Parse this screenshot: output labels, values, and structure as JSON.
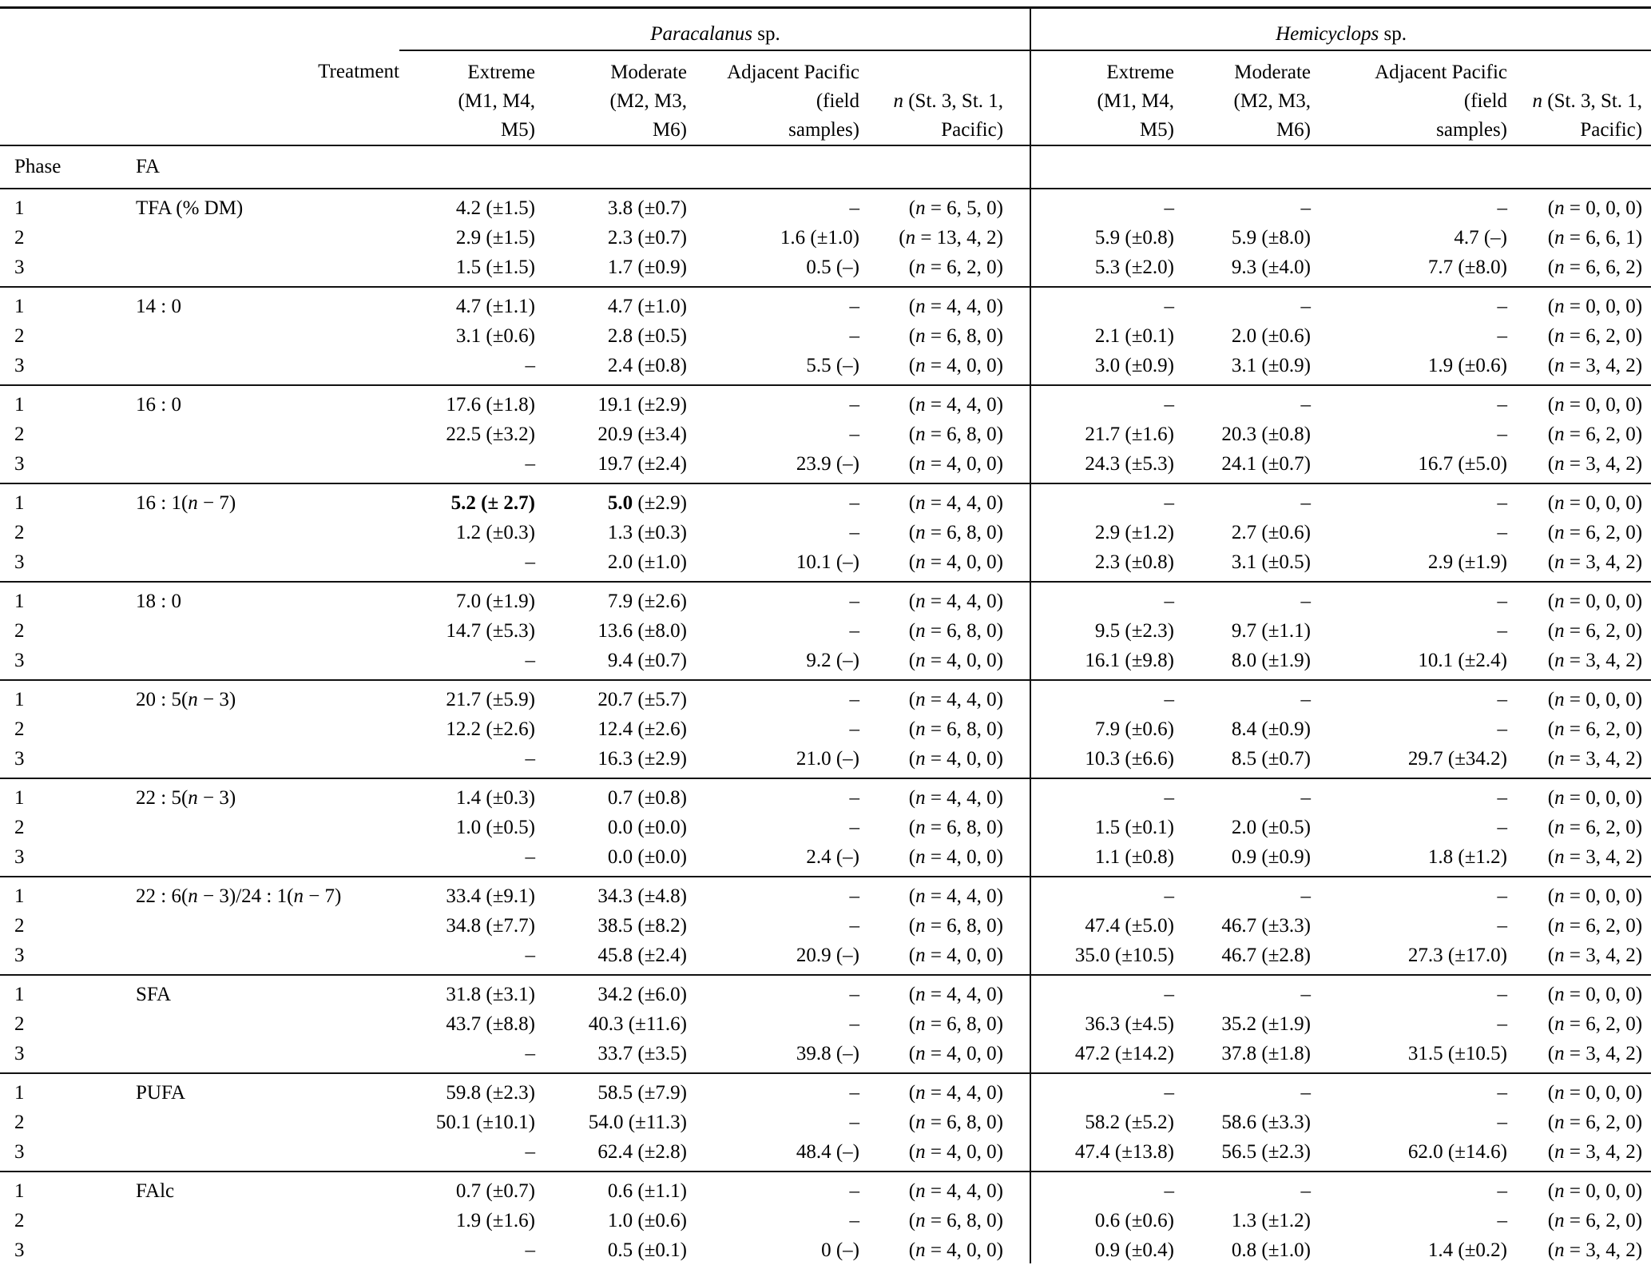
{
  "table": {
    "treatment_label": "Treatment",
    "phase_label": "Phase",
    "fa_label": "FA",
    "species": [
      {
        "name": "Paracalanus",
        "suffix": " sp."
      },
      {
        "name": "Hemicyclops",
        "suffix": " sp."
      }
    ],
    "columns": {
      "extreme": [
        "Extreme",
        "(M1, M4,",
        "M5)"
      ],
      "moderate": [
        "Moderate",
        "(M2, M3,",
        "M6)"
      ],
      "adjacent": [
        "Adjacent Pacific",
        "(field",
        "samples)"
      ],
      "n": {
        "italic": "n",
        "line1_rest": " (St. 3, St. 1,",
        "line2": "Pacific)"
      }
    },
    "groups": [
      {
        "fa": "TFA (% DM)",
        "rows": [
          {
            "phase": "1",
            "cells": [
              "4.2 (±1.5)",
              "3.8 (±0.7)",
              "–",
              "(n = 6, 5, 0)",
              "–",
              "–",
              "–",
              "(n = 0, 0, 0)"
            ]
          },
          {
            "phase": "2",
            "cells": [
              "2.9 (±1.5)",
              "2.3 (±0.7)",
              "1.6 (±1.0)",
              "(n = 13, 4, 2)",
              "5.9 (±0.8)",
              "5.9 (±8.0)",
              "4.7 (–)",
              "(n = 6, 6, 1)"
            ]
          },
          {
            "phase": "3",
            "cells": [
              "1.5 (±1.5)",
              "1.7 (±0.9)",
              "0.5 (–)",
              "(n = 6, 2, 0)",
              "5.3 (±2.0)",
              "9.3 (±4.0)",
              "7.7 (±8.0)",
              "(n = 6, 6, 2)"
            ]
          }
        ]
      },
      {
        "fa": "14 : 0",
        "rows": [
          {
            "phase": "1",
            "cells": [
              "4.7 (±1.1)",
              "4.7 (±1.0)",
              "–",
              "(n = 4, 4, 0)",
              "–",
              "–",
              "–",
              "(n = 0, 0, 0)"
            ]
          },
          {
            "phase": "2",
            "cells": [
              "3.1 (±0.6)",
              "2.8 (±0.5)",
              "–",
              "(n = 6, 8, 0)",
              "2.1 (±0.1)",
              "2.0 (±0.6)",
              "–",
              "(n = 6, 2, 0)"
            ]
          },
          {
            "phase": "3",
            "cells": [
              "–",
              "2.4 (±0.8)",
              "5.5 (–)",
              "(n = 4, 0, 0)",
              "3.0 (±0.9)",
              "3.1 (±0.9)",
              "1.9 (±0.6)",
              "(n = 3, 4, 2)"
            ]
          }
        ]
      },
      {
        "fa": "16 : 0",
        "rows": [
          {
            "phase": "1",
            "cells": [
              "17.6 (±1.8)",
              "19.1 (±2.9)",
              "–",
              "(n = 4, 4, 0)",
              "–",
              "–",
              "–",
              "(n = 0, 0, 0)"
            ]
          },
          {
            "phase": "2",
            "cells": [
              "22.5 (±3.2)",
              "20.9 (±3.4)",
              "–",
              "(n = 6, 8, 0)",
              "21.7 (±1.6)",
              "20.3 (±0.8)",
              "–",
              "(n = 6, 2, 0)"
            ]
          },
          {
            "phase": "3",
            "cells": [
              "–",
              "19.7 (±2.4)",
              "23.9 (–)",
              "(n = 4, 0, 0)",
              "24.3 (±5.3)",
              "24.1 (±0.7)",
              "16.7 (±5.0)",
              "(n = 3, 4, 2)"
            ]
          }
        ]
      },
      {
        "fa": "16 : 1(n − 7)",
        "rows": [
          {
            "phase": "1",
            "cells": [
              "**5.2 (± 2.7)**",
              "**5.0** (±2.9)",
              "–",
              "(n = 4, 4, 0)",
              "–",
              "–",
              "–",
              "(n = 0, 0, 0)"
            ]
          },
          {
            "phase": "2",
            "cells": [
              "1.2 (±0.3)",
              "1.3 (±0.3)",
              "–",
              "(n = 6, 8, 0)",
              "2.9 (±1.2)",
              "2.7 (±0.6)",
              "–",
              "(n = 6, 2, 0)"
            ]
          },
          {
            "phase": "3",
            "cells": [
              "–",
              "2.0 (±1.0)",
              "10.1 (–)",
              "(n = 4, 0, 0)",
              "2.3 (±0.8)",
              "3.1 (±0.5)",
              "2.9 (±1.9)",
              "(n = 3, 4, 2)"
            ]
          }
        ]
      },
      {
        "fa": "18 : 0",
        "rows": [
          {
            "phase": "1",
            "cells": [
              "7.0 (±1.9)",
              "7.9 (±2.6)",
              "–",
              "(n = 4, 4, 0)",
              "–",
              "–",
              "–",
              "(n = 0, 0, 0)"
            ]
          },
          {
            "phase": "2",
            "cells": [
              "14.7 (±5.3)",
              "13.6 (±8.0)",
              "–",
              "(n = 6, 8, 0)",
              "9.5 (±2.3)",
              "9.7 (±1.1)",
              "–",
              "(n = 6, 2, 0)"
            ]
          },
          {
            "phase": "3",
            "cells": [
              "–",
              "9.4 (±0.7)",
              "9.2 (–)",
              "(n = 4, 0, 0)",
              "16.1 (±9.8)",
              "8.0 (±1.9)",
              "10.1 (±2.4)",
              "(n = 3, 4, 2)"
            ]
          }
        ]
      },
      {
        "fa": "20 : 5(n − 3)",
        "rows": [
          {
            "phase": "1",
            "cells": [
              "21.7 (±5.9)",
              "20.7 (±5.7)",
              "–",
              "(n = 4, 4, 0)",
              "–",
              "–",
              "–",
              "(n = 0, 0, 0)"
            ]
          },
          {
            "phase": "2",
            "cells": [
              "12.2 (±2.6)",
              "12.4 (±2.6)",
              "–",
              "(n = 6, 8, 0)",
              "7.9 (±0.6)",
              "8.4 (±0.9)",
              "–",
              "(n = 6, 2, 0)"
            ]
          },
          {
            "phase": "3",
            "cells": [
              "–",
              "16.3 (±2.9)",
              "21.0 (–)",
              "(n = 4, 0, 0)",
              "10.3 (±6.6)",
              "8.5 (±0.7)",
              "29.7 (±34.2)",
              "(n = 3, 4, 2)"
            ]
          }
        ]
      },
      {
        "fa": "22 : 5(n − 3)",
        "rows": [
          {
            "phase": "1",
            "cells": [
              "1.4 (±0.3)",
              "0.7 (±0.8)",
              "–",
              "(n = 4, 4, 0)",
              "–",
              "–",
              "–",
              "(n = 0, 0, 0)"
            ]
          },
          {
            "phase": "2",
            "cells": [
              "1.0 (±0.5)",
              "0.0 (±0.0)",
              "–",
              "(n = 6, 8, 0)",
              "1.5 (±0.1)",
              "2.0 (±0.5)",
              "–",
              "(n = 6, 2, 0)"
            ]
          },
          {
            "phase": "3",
            "cells": [
              "–",
              "0.0 (±0.0)",
              "2.4 (–)",
              "(n = 4, 0, 0)",
              "1.1 (±0.8)",
              "0.9 (±0.9)",
              "1.8 (±1.2)",
              "(n = 3, 4, 2)"
            ]
          }
        ]
      },
      {
        "fa": "22 : 6(n − 3)/24 : 1(n − 7)",
        "rows": [
          {
            "phase": "1",
            "cells": [
              "33.4 (±9.1)",
              "34.3 (±4.8)",
              "–",
              "(n = 4, 4, 0)",
              "–",
              "–",
              "–",
              "(n = 0, 0, 0)"
            ]
          },
          {
            "phase": "2",
            "cells": [
              "34.8 (±7.7)",
              "38.5 (±8.2)",
              "–",
              "(n = 6, 8, 0)",
              "47.4 (±5.0)",
              "46.7 (±3.3)",
              "–",
              "(n = 6, 2, 0)"
            ]
          },
          {
            "phase": "3",
            "cells": [
              "–",
              "45.8 (±2.4)",
              "20.9 (–)",
              "(n = 4, 0, 0)",
              "35.0 (±10.5)",
              "46.7 (±2.8)",
              "27.3 (±17.0)",
              "(n = 3, 4, 2)"
            ]
          }
        ]
      },
      {
        "fa": "SFA",
        "rows": [
          {
            "phase": "1",
            "cells": [
              "31.8 (±3.1)",
              "34.2 (±6.0)",
              "–",
              "(n = 4, 4, 0)",
              "–",
              "–",
              "–",
              "(n = 0, 0, 0)"
            ]
          },
          {
            "phase": "2",
            "cells": [
              "43.7 (±8.8)",
              "40.3 (±11.6)",
              "–",
              "(n = 6, 8, 0)",
              "36.3 (±4.5)",
              "35.2 (±1.9)",
              "–",
              "(n = 6, 2, 0)"
            ]
          },
          {
            "phase": "3",
            "cells": [
              "–",
              "33.7 (±3.5)",
              "39.8 (–)",
              "(n = 4, 0, 0)",
              "47.2 (±14.2)",
              "37.8 (±1.8)",
              "31.5 (±10.5)",
              "(n = 3, 4, 2)"
            ]
          }
        ]
      },
      {
        "fa": "PUFA",
        "rows": [
          {
            "phase": "1",
            "cells": [
              "59.8 (±2.3)",
              "58.5 (±7.9)",
              "–",
              "(n = 4, 4, 0)",
              "–",
              "–",
              "–",
              "(n = 0, 0, 0)"
            ]
          },
          {
            "phase": "2",
            "cells": [
              "50.1 (±10.1)",
              "54.0 (±11.3)",
              "–",
              "(n = 6, 8, 0)",
              "58.2 (±5.2)",
              "58.6 (±3.3)",
              "–",
              "(n = 6, 2, 0)"
            ]
          },
          {
            "phase": "3",
            "cells": [
              "–",
              "62.4 (±2.8)",
              "48.4 (–)",
              "(n = 4, 0, 0)",
              "47.4 (±13.8)",
              "56.5 (±2.3)",
              "62.0 (±14.6)",
              "(n = 3, 4, 2)"
            ]
          }
        ]
      },
      {
        "fa": "FAlc",
        "rows": [
          {
            "phase": "1",
            "cells": [
              "0.7 (±0.7)",
              "0.6 (±1.1)",
              "–",
              "(n = 4, 4, 0)",
              "–",
              "–",
              "–",
              "(n = 0, 0, 0)"
            ]
          },
          {
            "phase": "2",
            "cells": [
              "1.9 (±1.6)",
              "1.0 (±0.6)",
              "–",
              "(n = 6, 8, 0)",
              "0.6 (±0.6)",
              "1.3 (±1.2)",
              "–",
              "(n = 6, 2, 0)"
            ]
          },
          {
            "phase": "3",
            "cells": [
              "–",
              "0.5 (±0.1)",
              "0 (–)",
              "(n = 4, 0, 0)",
              "0.9 (±0.4)",
              "0.8 (±1.0)",
              "1.4 (±0.2)",
              "(n = 3, 4, 2)"
            ]
          }
        ]
      }
    ]
  }
}
